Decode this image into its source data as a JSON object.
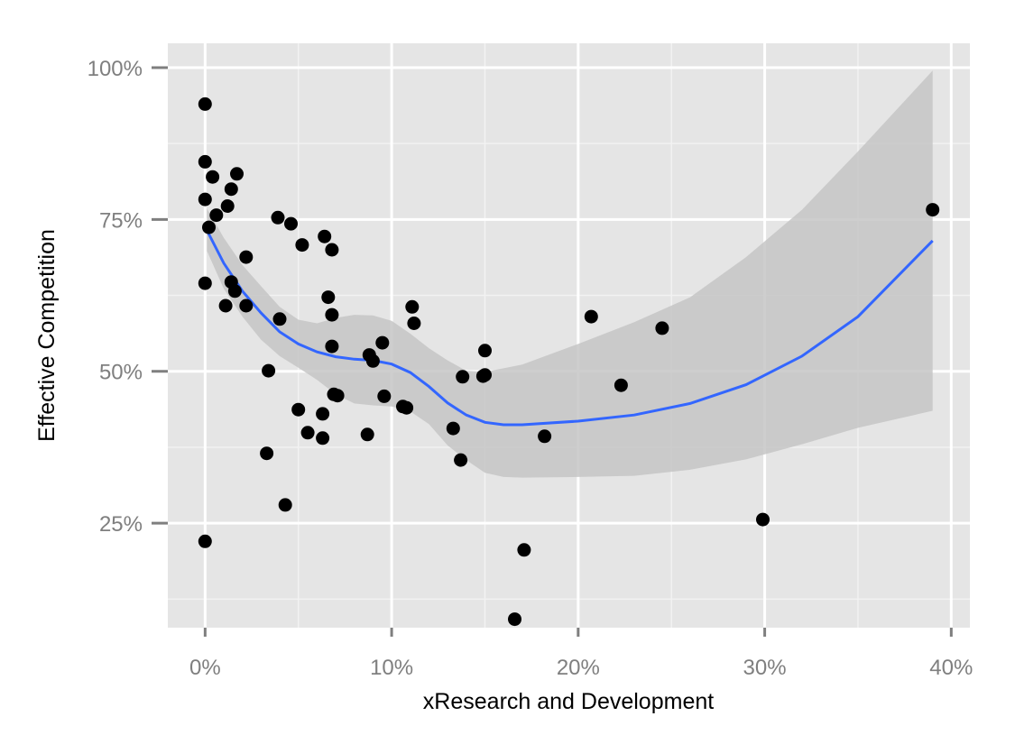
{
  "chart_data": {
    "type": "scatter",
    "xlabel": "xResearch and Development",
    "ylabel": "Effective Competition",
    "xlim": [
      -0.02,
      0.41
    ],
    "ylim": [
      0.078,
      1.04
    ],
    "x_ticks": [
      0,
      0.1,
      0.2,
      0.3,
      0.4
    ],
    "x_tick_labels": [
      "0%",
      "10%",
      "20%",
      "30%",
      "40%"
    ],
    "y_ticks": [
      0.25,
      0.5,
      0.75,
      1.0
    ],
    "y_tick_labels": [
      "25%",
      "50%",
      "75%",
      "100%"
    ],
    "grid": true,
    "legend": "none",
    "colors": {
      "panel": "#e5e5e5",
      "grid": "#ffffff",
      "points": "#000000",
      "smooth_line": "#3366ff",
      "confidence_band": "#c6c6c6"
    },
    "points": [
      {
        "x": 0.0,
        "y": 0.94
      },
      {
        "x": 0.0,
        "y": 0.845
      },
      {
        "x": 0.004,
        "y": 0.82
      },
      {
        "x": 0.017,
        "y": 0.825
      },
      {
        "x": 0.014,
        "y": 0.8
      },
      {
        "x": 0.0,
        "y": 0.783
      },
      {
        "x": 0.012,
        "y": 0.772
      },
      {
        "x": 0.006,
        "y": 0.757
      },
      {
        "x": 0.002,
        "y": 0.737
      },
      {
        "x": 0.0,
        "y": 0.645
      },
      {
        "x": 0.011,
        "y": 0.608
      },
      {
        "x": 0.014,
        "y": 0.647
      },
      {
        "x": 0.016,
        "y": 0.632
      },
      {
        "x": 0.022,
        "y": 0.688
      },
      {
        "x": 0.022,
        "y": 0.608
      },
      {
        "x": 0.0,
        "y": 0.22
      },
      {
        "x": 0.039,
        "y": 0.753
      },
      {
        "x": 0.046,
        "y": 0.743
      },
      {
        "x": 0.052,
        "y": 0.708
      },
      {
        "x": 0.064,
        "y": 0.722
      },
      {
        "x": 0.068,
        "y": 0.7
      },
      {
        "x": 0.066,
        "y": 0.622
      },
      {
        "x": 0.068,
        "y": 0.593
      },
      {
        "x": 0.04,
        "y": 0.586
      },
      {
        "x": 0.068,
        "y": 0.541
      },
      {
        "x": 0.034,
        "y": 0.501
      },
      {
        "x": 0.05,
        "y": 0.437
      },
      {
        "x": 0.063,
        "y": 0.43
      },
      {
        "x": 0.069,
        "y": 0.462
      },
      {
        "x": 0.071,
        "y": 0.46
      },
      {
        "x": 0.055,
        "y": 0.399
      },
      {
        "x": 0.063,
        "y": 0.39
      },
      {
        "x": 0.033,
        "y": 0.365
      },
      {
        "x": 0.043,
        "y": 0.28
      },
      {
        "x": 0.088,
        "y": 0.527
      },
      {
        "x": 0.09,
        "y": 0.517
      },
      {
        "x": 0.095,
        "y": 0.547
      },
      {
        "x": 0.096,
        "y": 0.459
      },
      {
        "x": 0.106,
        "y": 0.442
      },
      {
        "x": 0.108,
        "y": 0.44
      },
      {
        "x": 0.087,
        "y": 0.396
      },
      {
        "x": 0.111,
        "y": 0.606
      },
      {
        "x": 0.112,
        "y": 0.579
      },
      {
        "x": 0.133,
        "y": 0.406
      },
      {
        "x": 0.138,
        "y": 0.491
      },
      {
        "x": 0.137,
        "y": 0.354
      },
      {
        "x": 0.149,
        "y": 0.492
      },
      {
        "x": 0.15,
        "y": 0.494
      },
      {
        "x": 0.15,
        "y": 0.534
      },
      {
        "x": 0.166,
        "y": 0.092
      },
      {
        "x": 0.171,
        "y": 0.206
      },
      {
        "x": 0.182,
        "y": 0.393
      },
      {
        "x": 0.207,
        "y": 0.59
      },
      {
        "x": 0.223,
        "y": 0.477
      },
      {
        "x": 0.245,
        "y": 0.571
      },
      {
        "x": 0.299,
        "y": 0.256
      },
      {
        "x": 0.39,
        "y": 0.766
      }
    ],
    "smooth": {
      "x": [
        0.001,
        0.01,
        0.02,
        0.03,
        0.04,
        0.05,
        0.06,
        0.07,
        0.08,
        0.09,
        0.1,
        0.11,
        0.12,
        0.13,
        0.14,
        0.15,
        0.16,
        0.17,
        0.2,
        0.23,
        0.26,
        0.29,
        0.32,
        0.35,
        0.39
      ],
      "y": [
        0.732,
        0.678,
        0.632,
        0.596,
        0.565,
        0.545,
        0.532,
        0.524,
        0.52,
        0.518,
        0.512,
        0.498,
        0.475,
        0.448,
        0.428,
        0.416,
        0.412,
        0.412,
        0.418,
        0.428,
        0.447,
        0.478,
        0.525,
        0.59,
        0.715
      ],
      "upper": [
        0.768,
        0.72,
        0.675,
        0.64,
        0.606,
        0.585,
        0.579,
        0.588,
        0.593,
        0.592,
        0.583,
        0.562,
        0.538,
        0.518,
        0.501,
        0.499,
        0.505,
        0.511,
        0.545,
        0.581,
        0.622,
        0.688,
        0.766,
        0.862,
        0.995
      ],
      "lower": [
        0.698,
        0.636,
        0.59,
        0.552,
        0.525,
        0.506,
        0.486,
        0.462,
        0.447,
        0.444,
        0.442,
        0.434,
        0.413,
        0.378,
        0.354,
        0.333,
        0.326,
        0.325,
        0.326,
        0.328,
        0.338,
        0.355,
        0.38,
        0.407,
        0.435
      ]
    }
  }
}
